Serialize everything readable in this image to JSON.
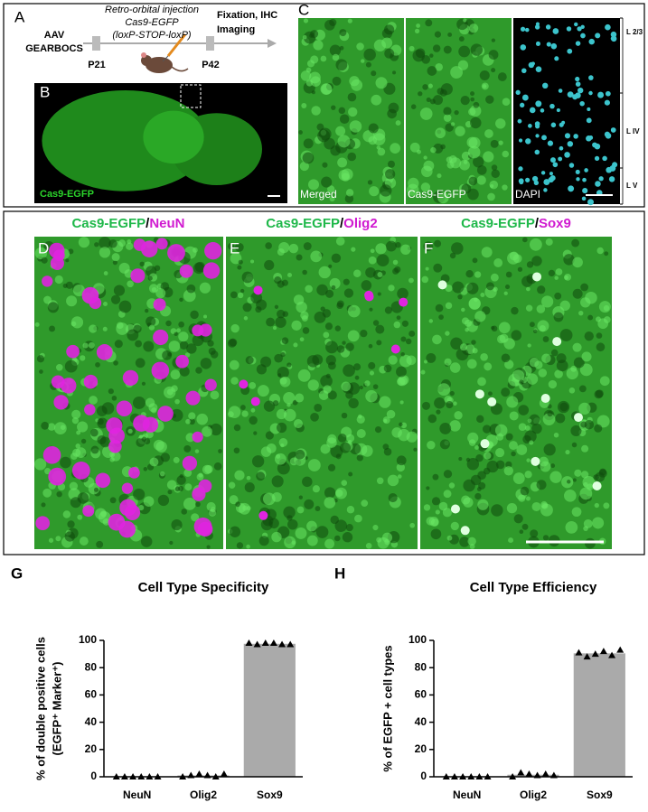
{
  "panel_labels": [
    "A",
    "B",
    "C",
    "D",
    "E",
    "F"
  ],
  "schematic": {
    "vector": [
      "AAV",
      "GEARBOCS"
    ],
    "injection": [
      "Retro-orbital injection",
      "Cas9-EGFP",
      "(loxP-STOP-loxP)"
    ],
    "timepoints": [
      "P21",
      "P42"
    ],
    "endpoint": [
      "Fixation, IHC",
      "Imaging"
    ]
  },
  "brain_label": "Cas9-EGFP",
  "cortex": {
    "channels": [
      "Merged",
      "Cas9-EGFP",
      "DAPI"
    ],
    "layers": [
      "L 2/3",
      "L IV",
      "L V"
    ]
  },
  "stains": [
    {
      "green": "Cas9-EGFP",
      "separator": "/",
      "marker": "NeuN"
    },
    {
      "green": "Cas9-EGFP",
      "separator": "/",
      "marker": "Olig2"
    },
    {
      "green": "Cas9-EGFP",
      "separator": "/",
      "marker": "Sox9"
    }
  ],
  "chart_data": [
    {
      "type": "bar",
      "panel": "G",
      "title": "Cell Type Specificity",
      "y_label": [
        "% of  double positive cells",
        "(EGFP⁺ Marker⁺)"
      ],
      "categories": [
        "NeuN",
        "Olig2",
        "Sox9"
      ],
      "values": [
        0,
        1,
        97.5
      ],
      "points": [
        [
          0,
          0,
          0,
          0,
          0,
          0
        ],
        [
          0,
          1,
          2,
          1,
          0,
          2
        ],
        [
          98,
          97,
          98,
          98,
          97,
          97
        ]
      ],
      "color": "#aaaaaa",
      "ylim": [
        0,
        100
      ],
      "yticks": [
        0,
        20,
        40,
        60,
        80,
        100
      ]
    },
    {
      "type": "bar",
      "panel": "H",
      "title": "Cell Type Efficiency",
      "y_label": [
        "% of  EGFP + cell types"
      ],
      "categories": [
        "NeuN",
        "Olig2",
        "Sox9"
      ],
      "values": [
        0,
        1.5,
        90.5
      ],
      "points": [
        [
          0,
          0,
          0,
          0,
          0,
          0
        ],
        [
          0,
          3,
          2,
          1,
          2,
          1
        ],
        [
          91,
          88,
          90,
          92,
          89,
          93
        ]
      ],
      "color": "#aaaaaa",
      "ylim": [
        0,
        100
      ],
      "yticks": [
        0,
        20,
        40,
        60,
        80,
        100
      ]
    }
  ]
}
